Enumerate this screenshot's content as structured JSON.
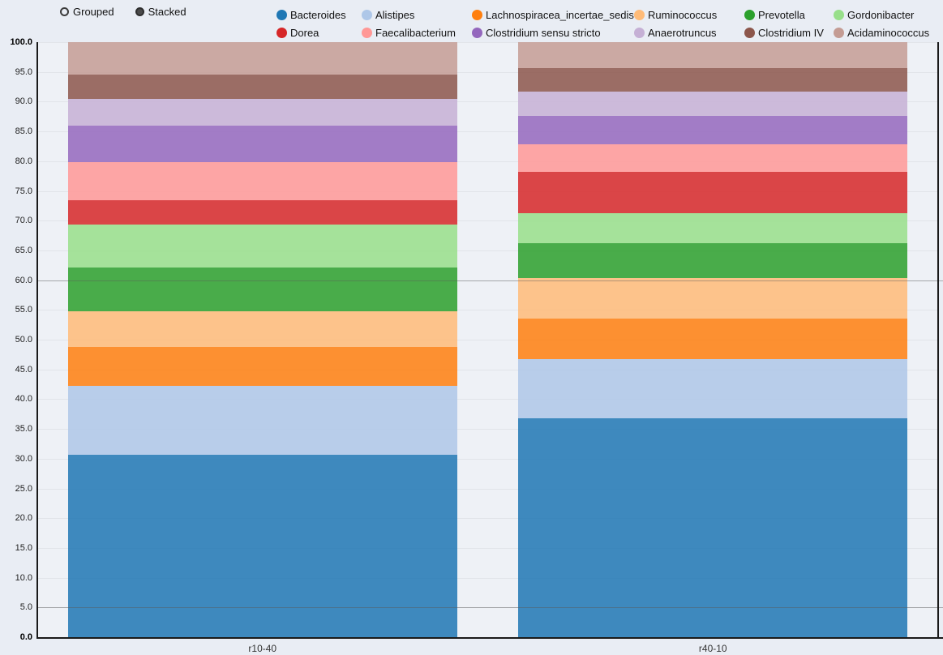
{
  "controls": {
    "grouped_label": "Grouped",
    "stacked_label": "Stacked",
    "selected": "Stacked"
  },
  "chart_data": {
    "type": "bar",
    "stacked": true,
    "orientation": "vertical",
    "categories": [
      "r10-40",
      "r40-10"
    ],
    "ylim": [
      0,
      100
    ],
    "ytick_step": 5,
    "emphasis_gridlines": [
      60,
      5
    ],
    "legend_position": "top",
    "series": [
      {
        "name": "Bacteroides",
        "color": "#1f77b4",
        "values": [
          30.7,
          36.8
        ]
      },
      {
        "name": "Alistipes",
        "color": "#aec7e8",
        "values": [
          11.6,
          9.9
        ]
      },
      {
        "name": "Lachnospiracea_incertae_sedis",
        "color": "#ff7f0e",
        "values": [
          6.5,
          6.8
        ]
      },
      {
        "name": "Ruminococcus",
        "color": "#ffbb78",
        "values": [
          6.0,
          6.9
        ]
      },
      {
        "name": "Prevotella",
        "color": "#2ca02c",
        "values": [
          7.3,
          5.8
        ]
      },
      {
        "name": "Gordonibacter",
        "color": "#98df8a",
        "values": [
          7.2,
          5.1
        ]
      },
      {
        "name": "Dorea",
        "color": "#d62728",
        "values": [
          4.2,
          6.9
        ]
      },
      {
        "name": "Faecalibacterium",
        "color": "#ff9896",
        "values": [
          6.3,
          4.7
        ]
      },
      {
        "name": "Clostridium sensu stricto",
        "color": "#9467bd",
        "values": [
          6.2,
          4.7
        ]
      },
      {
        "name": "Anaerotruncus",
        "color": "#c5b0d5",
        "values": [
          4.5,
          4.1
        ]
      },
      {
        "name": "Clostridium IV",
        "color": "#8c564b",
        "values": [
          4.0,
          3.9
        ]
      },
      {
        "name": "Acidaminococcus",
        "color": "#c49c94",
        "values": [
          5.5,
          4.4
        ]
      }
    ]
  }
}
